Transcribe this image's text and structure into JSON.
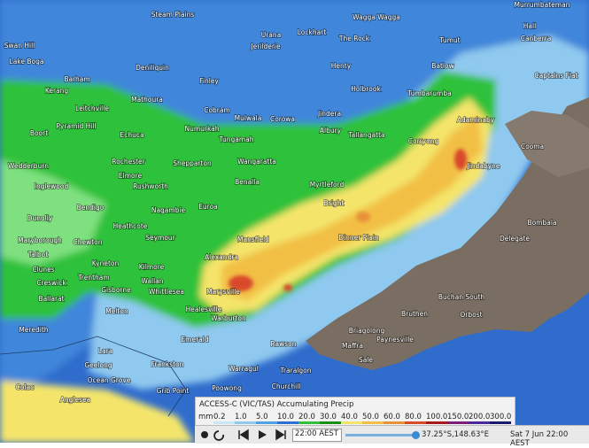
{
  "places": [
    "Steam Plains",
    "Wagga Wagga",
    "Murrumbateman",
    "Swan Hill",
    "Lake Boga",
    "Deniliquin",
    "Jerilderie",
    "Urana",
    "Lockhart",
    "The Rock",
    "Tumut",
    "Hall",
    "Canberra",
    "Henty",
    "Batlow",
    "Captains Flat",
    "Barham",
    "Finley",
    "Holbrook",
    "Kerang",
    "Mathoura",
    "Tumbarumba",
    "Leitchville",
    "Cobram",
    "Jindera",
    "Mulwala",
    "Corowa",
    "Adaminaby",
    "Pyramid Hill",
    "Numurkah",
    "Albury",
    "Boort",
    "Echuca",
    "Tungamah",
    "Tallangatta",
    "Corryong",
    "Cooma",
    "Wedderburn",
    "Rochester",
    "Shepparton",
    "Wangaratta",
    "Jindabyne",
    "Myrtleford",
    "Elmore",
    "Inglewood",
    "Rushworth",
    "Benalla",
    "Bendigo",
    "Nagambie",
    "Euroa",
    "Bright",
    "Dunolly",
    "Maryborough",
    "Chewton",
    "Heathcote",
    "Seymour",
    "Mansfield",
    "Dinner Plain",
    "Bombala",
    "Delegate",
    "Talbot",
    "Kyneton",
    "Alexandra",
    "Kilmore",
    "Clunes",
    "Creswick",
    "Trentham",
    "Wallan",
    "Gisborne",
    "Whittlesea",
    "Marysville",
    "Ballarat",
    "Buchan South",
    "Healesville",
    "Melton",
    "Orbost",
    "Bruthen",
    "Warburton",
    "Meredith",
    "Emerald",
    "Rawson",
    "Briagolong",
    "Paynesville",
    "Maffra",
    "Lara",
    "Frankston",
    "Warragul",
    "Geelong",
    "Sale",
    "Traralgon",
    "Ocean Grove",
    "Churchill",
    "Grib Point",
    "Poowong",
    "Anglesea",
    "Colac"
  ],
  "panel": {
    "title": "ACCESS-C (VIC/TAS) Accumulating Precip",
    "legend": {
      "unit": "mm",
      "values": [
        "0.2",
        "1.0",
        "5.0",
        "10.0",
        "20.0",
        "30.0",
        "40.0",
        "50.0",
        "60.0",
        "80.0",
        "100.0",
        "150.0",
        "200.0",
        "300.0"
      ]
    },
    "time_select": "22:00 AEST",
    "coordinates": "37.25°S,148.63°E",
    "datetime": "Sat 7 Jun 22:00 AEST"
  }
}
